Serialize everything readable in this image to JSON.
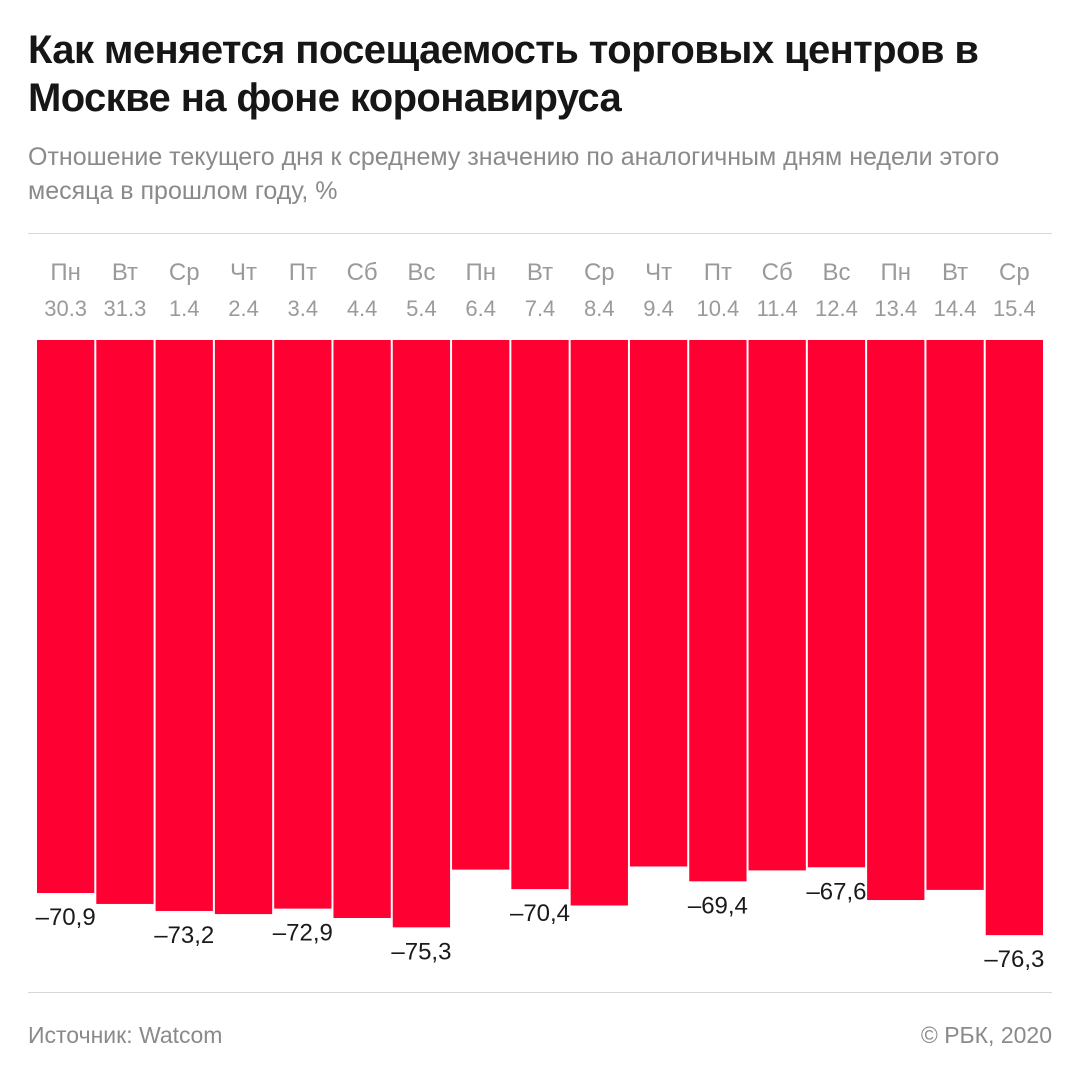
{
  "title": "Как меняется посещаемость торговых центров в Москве на фоне коронавируса",
  "subtitle": "Отношение текущего дня к среднему значению по аналогичным дням недели этого месяца в прошлом году, %",
  "footer": {
    "source": "Источник: Watcom",
    "credit": "© РБК, 2020"
  },
  "colors": {
    "bar": "#ff0033",
    "day_label": "#9a9a9a",
    "value_label": "#1a1a1a",
    "rule": "#d8d8d8"
  },
  "chart_data": {
    "type": "bar",
    "orientation": "downward from zero baseline",
    "categories": [
      {
        "weekday": "Пн",
        "date": "30.3"
      },
      {
        "weekday": "Вт",
        "date": "31.3"
      },
      {
        "weekday": "Ср",
        "date": "1.4"
      },
      {
        "weekday": "Чт",
        "date": "2.4"
      },
      {
        "weekday": "Пт",
        "date": "3.4"
      },
      {
        "weekday": "Сб",
        "date": "4.4"
      },
      {
        "weekday": "Вс",
        "date": "5.4"
      },
      {
        "weekday": "Пн",
        "date": "6.4"
      },
      {
        "weekday": "Вт",
        "date": "7.4"
      },
      {
        "weekday": "Ср",
        "date": "8.4"
      },
      {
        "weekday": "Чт",
        "date": "9.4"
      },
      {
        "weekday": "Пт",
        "date": "10.4"
      },
      {
        "weekday": "Сб",
        "date": "11.4"
      },
      {
        "weekday": "Вс",
        "date": "12.4"
      },
      {
        "weekday": "Пн",
        "date": "13.4"
      },
      {
        "weekday": "Вт",
        "date": "14.4"
      },
      {
        "weekday": "Ср",
        "date": "15.4"
      }
    ],
    "values": [
      -70.9,
      -72.3,
      -73.2,
      -73.6,
      -72.9,
      -74.1,
      -75.3,
      -67.9,
      -70.4,
      -72.5,
      -67.5,
      -69.4,
      -68.0,
      -67.6,
      -71.8,
      -70.5,
      -76.3
    ],
    "data_labels": [
      "–70,9",
      "",
      "–73,2",
      "",
      "–72,9",
      "",
      "–75,3",
      "",
      "–70,4",
      "",
      "",
      "–69,4",
      "",
      "–67,6",
      "",
      "",
      "–76,3"
    ],
    "ylim": [
      -100,
      0
    ],
    "grid": false,
    "legend": "none"
  }
}
